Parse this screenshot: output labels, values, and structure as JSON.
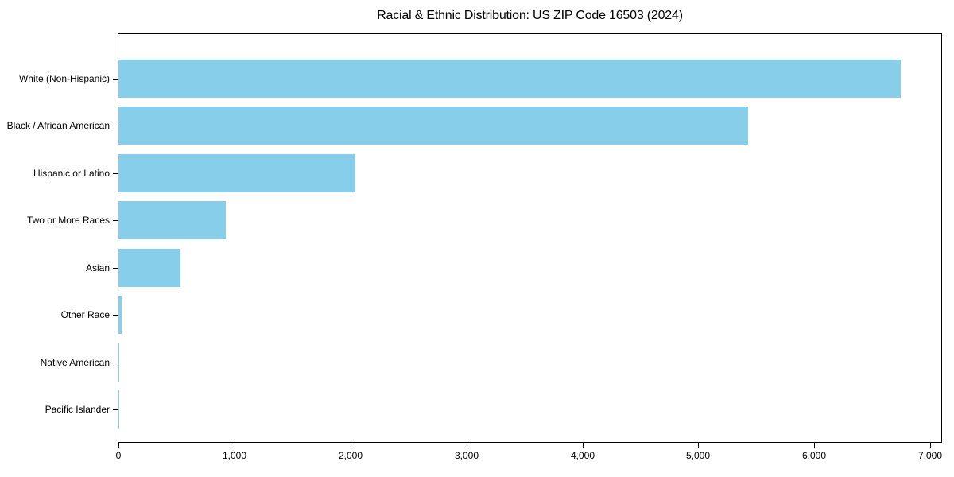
{
  "page": {
    "background": "#ffffff"
  },
  "chart_data": {
    "type": "bar",
    "orientation": "horizontal",
    "title": "Racial & Ethnic Distribution: US ZIP Code 16503 (2024)",
    "xlabel": "",
    "ylabel": "",
    "categories": [
      "White (Non-Hispanic)",
      "Black / African American",
      "Hispanic or Latino",
      "Two or More Races",
      "Asian",
      "Other Race",
      "Native American",
      "Pacific Islander"
    ],
    "values": [
      6745,
      5430,
      2045,
      925,
      535,
      25,
      6,
      2
    ],
    "xlim": [
      0,
      7095
    ],
    "xticks": [
      0,
      1000,
      2000,
      3000,
      4000,
      5000,
      6000,
      7000
    ],
    "xtick_labels": [
      "0",
      "1,000",
      "2,000",
      "3,000",
      "4,000",
      "5,000",
      "6,000",
      "7,000"
    ],
    "grid": false,
    "legend": null,
    "bar_color": "#87CEEB",
    "axis_color": "#000000",
    "text_color": "#000000"
  }
}
